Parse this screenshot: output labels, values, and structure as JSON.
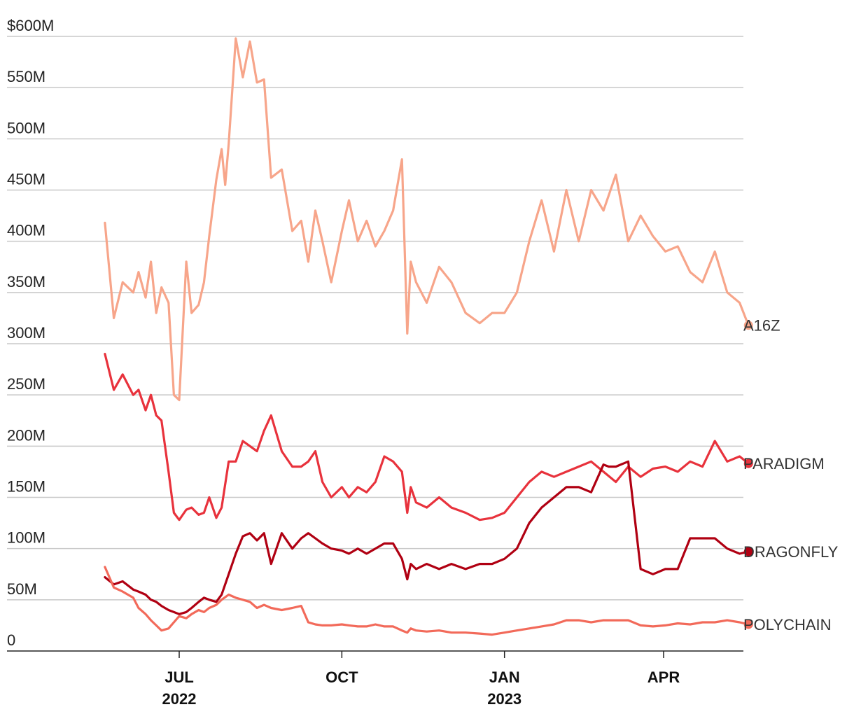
{
  "chart_data": {
    "type": "line",
    "ylim": [
      0,
      600
    ],
    "y_ticks": [
      {
        "value": 0,
        "label": "0"
      },
      {
        "value": 50,
        "label": "50M"
      },
      {
        "value": 100,
        "label": "100M"
      },
      {
        "value": 150,
        "label": "150M"
      },
      {
        "value": 200,
        "label": "200M"
      },
      {
        "value": 250,
        "label": "250M"
      },
      {
        "value": 300,
        "label": "300M"
      },
      {
        "value": 350,
        "label": "350M"
      },
      {
        "value": 400,
        "label": "400M"
      },
      {
        "value": 450,
        "label": "450M"
      },
      {
        "value": 500,
        "label": "500M"
      },
      {
        "value": 550,
        "label": "550M"
      },
      {
        "value": 600,
        "label": "$600M"
      }
    ],
    "x_ticks": [
      {
        "date": "2022-07-01",
        "month": "JUL",
        "year": "2022"
      },
      {
        "date": "2022-10-01",
        "month": "OCT",
        "year": ""
      },
      {
        "date": "2023-01-01",
        "month": "JAN",
        "year": "2023"
      },
      {
        "date": "2023-04-01",
        "month": "APR",
        "year": ""
      }
    ],
    "xlim": [
      "2022-05-01",
      "2023-05-24"
    ],
    "grid": true,
    "series": [
      {
        "name": "A16Z",
        "color": "#f7a58a",
        "x": [
          "2022-05-20",
          "2022-05-25",
          "2022-05-30",
          "2022-06-05",
          "2022-06-08",
          "2022-06-12",
          "2022-06-15",
          "2022-06-18",
          "2022-06-21",
          "2022-06-25",
          "2022-06-28",
          "2022-07-01",
          "2022-07-05",
          "2022-07-08",
          "2022-07-12",
          "2022-07-15",
          "2022-07-18",
          "2022-07-22",
          "2022-07-25",
          "2022-07-27",
          "2022-07-29",
          "2022-08-02",
          "2022-08-06",
          "2022-08-10",
          "2022-08-14",
          "2022-08-18",
          "2022-08-22",
          "2022-08-28",
          "2022-09-03",
          "2022-09-08",
          "2022-09-12",
          "2022-09-16",
          "2022-09-20",
          "2022-09-25",
          "2022-10-01",
          "2022-10-05",
          "2022-10-10",
          "2022-10-15",
          "2022-10-20",
          "2022-10-25",
          "2022-10-30",
          "2022-11-04",
          "2022-11-07",
          "2022-11-09",
          "2022-11-12",
          "2022-11-18",
          "2022-11-25",
          "2022-12-02",
          "2022-12-10",
          "2022-12-18",
          "2022-12-25",
          "2023-01-01",
          "2023-01-08",
          "2023-01-15",
          "2023-01-22",
          "2023-01-29",
          "2023-02-05",
          "2023-02-12",
          "2023-02-19",
          "2023-02-26",
          "2023-03-05",
          "2023-03-12",
          "2023-03-19",
          "2023-03-26",
          "2023-04-02",
          "2023-04-09",
          "2023-04-16",
          "2023-04-23",
          "2023-04-30",
          "2023-05-07",
          "2023-05-14",
          "2023-05-19"
        ],
        "values": [
          418,
          325,
          360,
          350,
          370,
          345,
          380,
          330,
          355,
          340,
          250,
          245,
          380,
          330,
          338,
          360,
          405,
          460,
          490,
          455,
          495,
          598,
          560,
          595,
          555,
          558,
          462,
          470,
          410,
          420,
          380,
          430,
          400,
          360,
          410,
          440,
          400,
          420,
          395,
          410,
          430,
          480,
          310,
          380,
          360,
          340,
          375,
          360,
          330,
          320,
          330,
          330,
          350,
          400,
          440,
          390,
          450,
          400,
          450,
          430,
          465,
          400,
          425,
          405,
          390,
          395,
          370,
          360,
          390,
          350,
          340,
          318
        ]
      },
      {
        "name": "PARADIGM",
        "color": "#e8323c",
        "x": [
          "2022-05-20",
          "2022-05-25",
          "2022-05-30",
          "2022-06-05",
          "2022-06-08",
          "2022-06-12",
          "2022-06-15",
          "2022-06-18",
          "2022-06-21",
          "2022-06-25",
          "2022-06-28",
          "2022-07-01",
          "2022-07-05",
          "2022-07-08",
          "2022-07-12",
          "2022-07-15",
          "2022-07-18",
          "2022-07-22",
          "2022-07-25",
          "2022-07-29",
          "2022-08-02",
          "2022-08-06",
          "2022-08-10",
          "2022-08-14",
          "2022-08-18",
          "2022-08-22",
          "2022-08-28",
          "2022-09-03",
          "2022-09-08",
          "2022-09-12",
          "2022-09-16",
          "2022-09-20",
          "2022-09-25",
          "2022-10-01",
          "2022-10-05",
          "2022-10-10",
          "2022-10-15",
          "2022-10-20",
          "2022-10-25",
          "2022-10-30",
          "2022-11-04",
          "2022-11-07",
          "2022-11-09",
          "2022-11-12",
          "2022-11-18",
          "2022-11-25",
          "2022-12-02",
          "2022-12-10",
          "2022-12-18",
          "2022-12-25",
          "2023-01-01",
          "2023-01-08",
          "2023-01-15",
          "2023-01-22",
          "2023-01-29",
          "2023-02-05",
          "2023-02-12",
          "2023-02-19",
          "2023-02-26",
          "2023-03-05",
          "2023-03-12",
          "2023-03-19",
          "2023-03-26",
          "2023-04-02",
          "2023-04-09",
          "2023-04-16",
          "2023-04-23",
          "2023-04-30",
          "2023-05-07",
          "2023-05-14",
          "2023-05-19"
        ],
        "values": [
          290,
          255,
          270,
          250,
          255,
          235,
          250,
          230,
          225,
          175,
          135,
          128,
          138,
          140,
          133,
          135,
          150,
          130,
          140,
          185,
          185,
          205,
          200,
          195,
          215,
          230,
          195,
          180,
          180,
          185,
          195,
          165,
          150,
          160,
          150,
          160,
          155,
          165,
          190,
          185,
          175,
          135,
          160,
          145,
          140,
          150,
          140,
          135,
          128,
          130,
          135,
          150,
          165,
          175,
          170,
          175,
          180,
          185,
          175,
          165,
          180,
          170,
          178,
          180,
          175,
          185,
          180,
          205,
          185,
          190,
          183
        ]
      },
      {
        "name": "DRAGONFLY",
        "color": "#b00012",
        "x": [
          "2022-05-20",
          "2022-05-25",
          "2022-05-30",
          "2022-06-05",
          "2022-06-08",
          "2022-06-12",
          "2022-06-15",
          "2022-06-18",
          "2022-06-21",
          "2022-06-25",
          "2022-06-28",
          "2022-07-01",
          "2022-07-05",
          "2022-07-08",
          "2022-07-12",
          "2022-07-15",
          "2022-07-18",
          "2022-07-22",
          "2022-07-25",
          "2022-07-29",
          "2022-08-02",
          "2022-08-06",
          "2022-08-10",
          "2022-08-14",
          "2022-08-18",
          "2022-08-22",
          "2022-08-28",
          "2022-09-03",
          "2022-09-08",
          "2022-09-12",
          "2022-09-16",
          "2022-09-20",
          "2022-09-25",
          "2022-10-01",
          "2022-10-05",
          "2022-10-10",
          "2022-10-15",
          "2022-10-20",
          "2022-10-25",
          "2022-10-30",
          "2022-11-04",
          "2022-11-07",
          "2022-11-09",
          "2022-11-12",
          "2022-11-18",
          "2022-11-25",
          "2022-12-02",
          "2022-12-10",
          "2022-12-18",
          "2022-12-25",
          "2023-01-01",
          "2023-01-08",
          "2023-01-15",
          "2023-01-22",
          "2023-01-29",
          "2023-02-05",
          "2023-02-12",
          "2023-02-19",
          "2023-02-26",
          "2023-03-01",
          "2023-03-05",
          "2023-03-12",
          "2023-03-19",
          "2023-03-26",
          "2023-04-02",
          "2023-04-09",
          "2023-04-16",
          "2023-04-23",
          "2023-04-30",
          "2023-05-07",
          "2023-05-14",
          "2023-05-19"
        ],
        "values": [
          72,
          65,
          68,
          60,
          58,
          55,
          50,
          48,
          44,
          40,
          38,
          36,
          38,
          42,
          48,
          52,
          50,
          48,
          55,
          75,
          95,
          112,
          115,
          108,
          115,
          85,
          115,
          100,
          110,
          115,
          110,
          105,
          100,
          98,
          95,
          100,
          95,
          100,
          105,
          105,
          90,
          70,
          85,
          80,
          85,
          80,
          85,
          80,
          85,
          85,
          90,
          100,
          125,
          140,
          150,
          160,
          160,
          155,
          182,
          180,
          180,
          185,
          80,
          75,
          80,
          80,
          110,
          110,
          110,
          100,
          95,
          97
        ]
      },
      {
        "name": "POLYCHAIN",
        "color": "#f26a5a",
        "x": [
          "2022-05-20",
          "2022-05-25",
          "2022-05-30",
          "2022-06-05",
          "2022-06-08",
          "2022-06-12",
          "2022-06-15",
          "2022-06-18",
          "2022-06-21",
          "2022-06-25",
          "2022-06-28",
          "2022-07-01",
          "2022-07-05",
          "2022-07-08",
          "2022-07-12",
          "2022-07-15",
          "2022-07-18",
          "2022-07-22",
          "2022-07-25",
          "2022-07-29",
          "2022-08-02",
          "2022-08-06",
          "2022-08-10",
          "2022-08-14",
          "2022-08-18",
          "2022-08-22",
          "2022-08-28",
          "2022-09-03",
          "2022-09-08",
          "2022-09-12",
          "2022-09-16",
          "2022-09-20",
          "2022-09-25",
          "2022-10-01",
          "2022-10-05",
          "2022-10-10",
          "2022-10-15",
          "2022-10-20",
          "2022-10-25",
          "2022-10-30",
          "2022-11-04",
          "2022-11-07",
          "2022-11-09",
          "2022-11-12",
          "2022-11-18",
          "2022-11-25",
          "2022-12-02",
          "2022-12-10",
          "2022-12-18",
          "2022-12-25",
          "2023-01-01",
          "2023-01-08",
          "2023-01-15",
          "2023-01-22",
          "2023-01-29",
          "2023-02-05",
          "2023-02-12",
          "2023-02-19",
          "2023-02-26",
          "2023-03-05",
          "2023-03-12",
          "2023-03-19",
          "2023-03-26",
          "2023-04-02",
          "2023-04-09",
          "2023-04-16",
          "2023-04-23",
          "2023-04-30",
          "2023-05-07",
          "2023-05-14",
          "2023-05-19"
        ],
        "values": [
          82,
          62,
          58,
          52,
          42,
          36,
          30,
          25,
          20,
          22,
          28,
          34,
          32,
          36,
          40,
          38,
          42,
          45,
          50,
          55,
          52,
          50,
          48,
          42,
          45,
          42,
          40,
          42,
          44,
          28,
          26,
          25,
          25,
          26,
          25,
          24,
          24,
          26,
          24,
          24,
          20,
          18,
          22,
          20,
          19,
          20,
          18,
          18,
          17,
          16,
          18,
          20,
          22,
          24,
          26,
          30,
          30,
          28,
          30,
          30,
          30,
          25,
          24,
          25,
          27,
          26,
          28,
          28,
          30,
          28,
          26
        ]
      }
    ]
  }
}
